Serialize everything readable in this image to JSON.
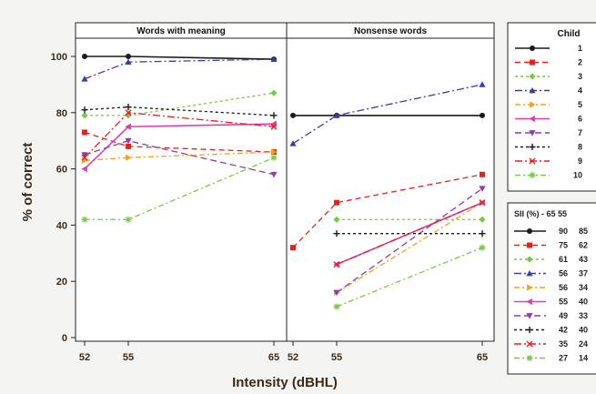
{
  "chart_data": {
    "type": "line",
    "ylabel": "% of correct",
    "xlabel": "Intensity (dBHL)",
    "ylim": [
      0,
      100
    ],
    "yticks": [
      0,
      20,
      40,
      60,
      80,
      100
    ],
    "x": [
      52,
      55,
      65
    ],
    "panels": [
      {
        "title": "Words with meaning",
        "series": [
          {
            "name": "1",
            "values": [
              100,
              100,
              99
            ]
          },
          {
            "name": "2",
            "values": [
              73,
              68,
              66
            ]
          },
          {
            "name": "3",
            "values": [
              79,
              79,
              87
            ]
          },
          {
            "name": "4",
            "values": [
              92,
              98,
              99
            ]
          },
          {
            "name": "5",
            "values": [
              63,
              64,
              66
            ]
          },
          {
            "name": "6",
            "values": [
              60,
              75,
              76
            ]
          },
          {
            "name": "7",
            "values": [
              65,
              70,
              58
            ]
          },
          {
            "name": "8",
            "values": [
              81,
              82,
              79
            ]
          },
          {
            "name": "9",
            "values": [
              64,
              80,
              75
            ]
          },
          {
            "name": "10",
            "values": [
              42,
              42,
              64
            ]
          }
        ]
      },
      {
        "title": "Nonsense words",
        "series": [
          {
            "name": "1",
            "values": [
              79,
              79,
              79
            ]
          },
          {
            "name": "2",
            "values": [
              32,
              48,
              58
            ]
          },
          {
            "name": "3",
            "values": [
              null,
              42,
              42
            ]
          },
          {
            "name": "4",
            "values": [
              69,
              79,
              90
            ]
          },
          {
            "name": "5",
            "values": [
              null,
              16,
              48
            ]
          },
          {
            "name": "6",
            "values": [
              null,
              26,
              48
            ]
          },
          {
            "name": "7",
            "values": [
              null,
              16,
              53
            ]
          },
          {
            "name": "8",
            "values": [
              null,
              37,
              37
            ]
          },
          {
            "name": "9",
            "values": [
              null,
              26,
              48
            ]
          },
          {
            "name": "10",
            "values": [
              null,
              11,
              32
            ]
          }
        ]
      }
    ],
    "legend_child": {
      "title": "Child",
      "entries": [
        "1",
        "2",
        "3",
        "4",
        "5",
        "6",
        "7",
        "8",
        "9",
        "10"
      ]
    },
    "legend_sii": {
      "title": "SII (%) - 65  55",
      "rows": [
        [
          "90",
          "85"
        ],
        [
          "75",
          "62"
        ],
        [
          "61",
          "43"
        ],
        [
          "56",
          "37"
        ],
        [
          "56",
          "34"
        ],
        [
          "55",
          "40"
        ],
        [
          "49",
          "33"
        ],
        [
          "42",
          "40"
        ],
        [
          "35",
          "24"
        ],
        [
          "27",
          "14"
        ]
      ]
    },
    "styles": [
      {
        "color": "#1a1a1a",
        "dash": "",
        "marker": "circle"
      },
      {
        "color": "#e8201c",
        "dash": "6,4",
        "marker": "square"
      },
      {
        "color": "#7ac943",
        "dash": "3,3",
        "marker": "diamond"
      },
      {
        "color": "#3c3ca6",
        "dash": "8,3,2,3",
        "marker": "triangle"
      },
      {
        "color": "#f7a11a",
        "dash": "6,3,2,3",
        "marker": "triangle-right"
      },
      {
        "color": "#d93fb3",
        "dash": "",
        "marker": "triangle-left"
      },
      {
        "color": "#8e3ab2",
        "dash": "7,4",
        "marker": "triangle-down"
      },
      {
        "color": "#1a1a1a",
        "dash": "3,3",
        "marker": "plus"
      },
      {
        "color": "#e8201c",
        "dash": "8,3,2,3",
        "marker": "x"
      },
      {
        "color": "#7ac943",
        "dash": "6,3,2,3",
        "marker": "star"
      }
    ],
    "grid": false,
    "legend_position": "right"
  }
}
